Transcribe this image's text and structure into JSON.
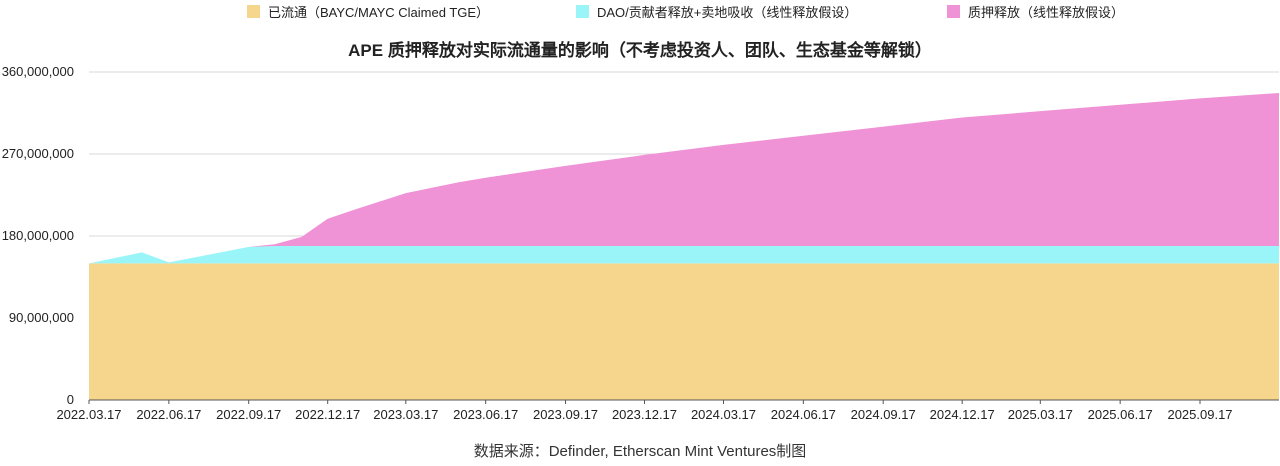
{
  "chart_data": {
    "type": "area",
    "stacked": true,
    "title": "APE 质押释放对实际流通量的影响（不考虑投资人、团队、生态基金等解锁）",
    "source": "数据来源：Definder, Etherscan Mint Ventures制图",
    "ylim": [
      0,
      360000000
    ],
    "yticks": [
      "0",
      "90,000,000",
      "180,000,000",
      "270,000,000",
      "360,000,000"
    ],
    "ytick_values": [
      0,
      90000000,
      180000000,
      270000000,
      360000000
    ],
    "xticks": [
      "2022.03.17",
      "2022.06.17",
      "2022.09.17",
      "2022.12.17",
      "2023.03.17",
      "2023.06.17",
      "2023.09.17",
      "2023.12.17",
      "2024.03.17",
      "2024.06.17",
      "2024.09.17",
      "2024.12.17",
      "2025.03.17",
      "2025.06.17",
      "2025.09.17"
    ],
    "x": [
      "2022.03.17",
      "2022.05.17",
      "2022.06.17",
      "2022.09.17",
      "2022.10.17",
      "2022.11.17",
      "2022.12.17",
      "2023.01.17",
      "2023.03.17",
      "2023.05.17",
      "2023.06.17",
      "2023.09.17",
      "2023.12.17",
      "2024.03.17",
      "2024.06.17",
      "2024.09.17",
      "2024.12.17",
      "2025.03.17",
      "2025.06.17",
      "2025.09.17",
      "2025.12.17"
    ],
    "series": [
      {
        "name": "已流通（BAYC/MAYC Claimed TGE）",
        "color": "#F6D58D",
        "values": [
          150000000,
          150000000,
          150000000,
          150000000,
          150000000,
          150000000,
          150000000,
          150000000,
          150000000,
          150000000,
          150000000,
          150000000,
          150000000,
          150000000,
          150000000,
          150000000,
          150000000,
          150000000,
          150000000,
          150000000,
          150000000
        ]
      },
      {
        "name": "DAO/贡献者释放+卖地吸收（线性释放假设）",
        "color": "#9AF5F8",
        "values": [
          0,
          12000000,
          1000000,
          18000000,
          19000000,
          19000000,
          19000000,
          19000000,
          19000000,
          19000000,
          19000000,
          19000000,
          19000000,
          19000000,
          19000000,
          19000000,
          19000000,
          19000000,
          19000000,
          19000000,
          19000000
        ]
      },
      {
        "name": "质押释放（线性释放假设）",
        "color": "#EF92D6",
        "values": [
          0,
          0,
          0,
          0,
          2000000,
          10000000,
          30000000,
          40000000,
          58000000,
          70000000,
          75000000,
          88000000,
          100000000,
          111000000,
          121000000,
          131000000,
          141000000,
          148000000,
          155000000,
          162000000,
          168000000
        ]
      }
    ]
  }
}
